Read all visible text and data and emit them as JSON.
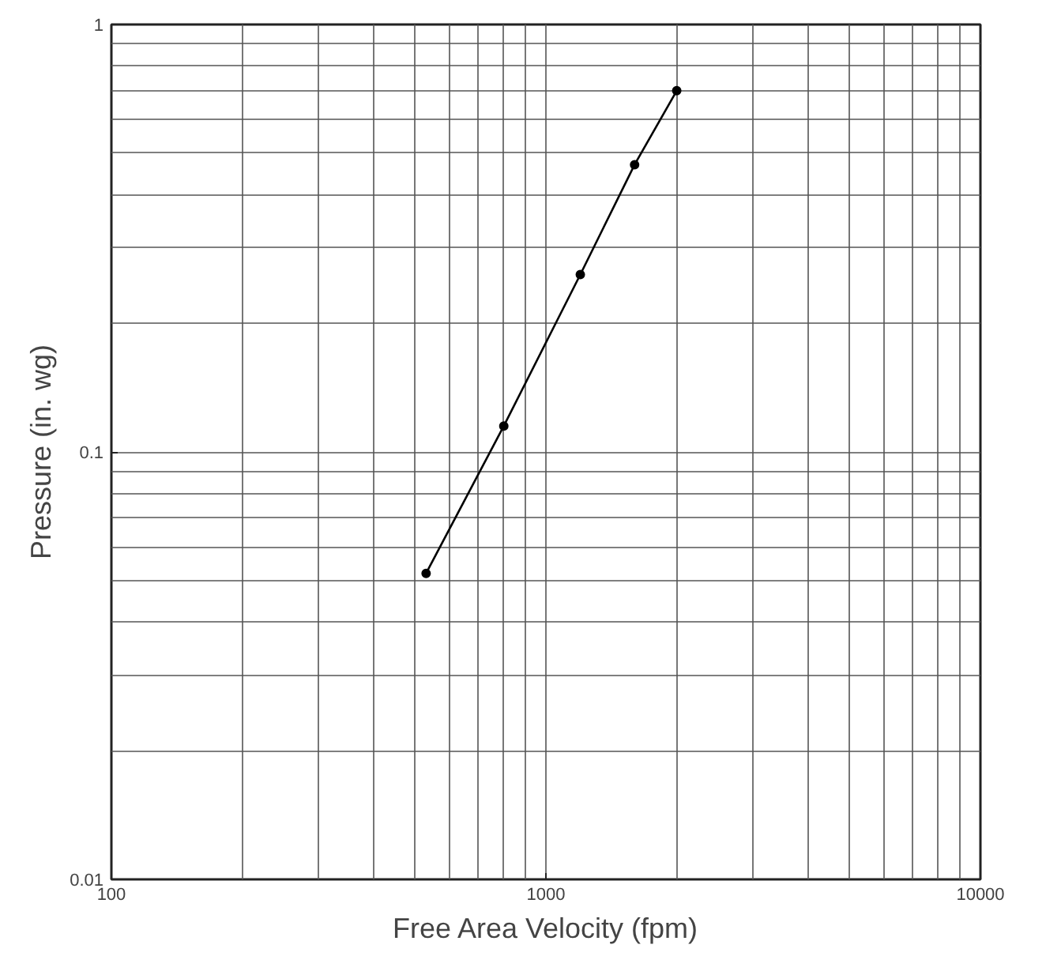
{
  "chart_data": {
    "type": "line",
    "xlabel": "Free Area Velocity (fpm)",
    "ylabel": "Pressure (in. wg)",
    "x": [
      530,
      800,
      1200,
      1600,
      2000
    ],
    "series": [
      {
        "color": "#000000",
        "values": [
          0.052,
          0.115,
          0.26,
          0.47,
          0.7
        ]
      }
    ],
    "log": "xy",
    "xlim": [
      100,
      10000
    ],
    "ylim": [
      0.01,
      1
    ],
    "xticks": [
      100,
      1000,
      10000
    ],
    "yticks": [
      0.01,
      0.1,
      1
    ],
    "grid": true,
    "marker": "circle",
    "line_style": "solid"
  }
}
